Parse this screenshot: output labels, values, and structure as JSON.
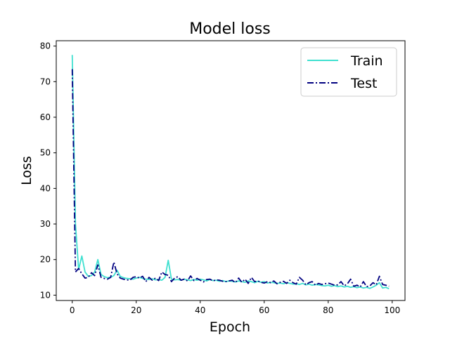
{
  "chart_data": {
    "type": "line",
    "title": "Model loss",
    "xlabel": "Epoch",
    "ylabel": "Loss",
    "xlim": [
      -5,
      104
    ],
    "ylim": [
      8.5,
      81.5
    ],
    "xticks": [
      0,
      20,
      40,
      60,
      80,
      100
    ],
    "yticks": [
      10,
      20,
      30,
      40,
      50,
      60,
      70,
      80
    ],
    "grid": false,
    "legend_position": "top-right",
    "series": [
      {
        "name": "Train",
        "color": "#40e0d0",
        "style": "solid",
        "x": [
          0,
          1,
          2,
          3,
          4,
          5,
          6,
          7,
          8,
          9,
          10,
          11,
          12,
          13,
          14,
          15,
          16,
          17,
          18,
          19,
          20,
          21,
          22,
          23,
          24,
          25,
          26,
          27,
          28,
          29,
          30,
          31,
          32,
          33,
          34,
          35,
          36,
          37,
          38,
          39,
          40,
          41,
          42,
          43,
          44,
          45,
          46,
          47,
          48,
          49,
          50,
          51,
          52,
          53,
          54,
          55,
          56,
          57,
          58,
          59,
          60,
          61,
          62,
          63,
          64,
          65,
          66,
          67,
          68,
          69,
          70,
          71,
          72,
          73,
          74,
          75,
          76,
          77,
          78,
          79,
          80,
          81,
          82,
          83,
          84,
          85,
          86,
          87,
          88,
          89,
          90,
          91,
          92,
          93,
          94,
          95,
          96,
          97,
          98,
          99
        ],
        "values": [
          77.5,
          30.0,
          17.2,
          21.0,
          16.5,
          15.3,
          15.5,
          16.5,
          20.0,
          15.8,
          15.2,
          14.9,
          15.0,
          15.5,
          17.0,
          15.3,
          14.9,
          14.7,
          14.6,
          14.5,
          14.8,
          15.0,
          14.7,
          14.5,
          14.4,
          14.6,
          14.3,
          14.4,
          14.2,
          15.0,
          19.8,
          14.5,
          14.3,
          14.4,
          14.2,
          14.5,
          14.3,
          14.1,
          14.4,
          14.2,
          14.5,
          14.3,
          14.0,
          14.4,
          14.1,
          14.2,
          13.9,
          14.1,
          13.8,
          14.0,
          13.9,
          13.7,
          14.0,
          13.8,
          13.6,
          14.0,
          13.8,
          13.5,
          13.9,
          13.6,
          13.8,
          13.4,
          13.6,
          13.5,
          13.3,
          13.4,
          13.2,
          13.5,
          13.3,
          13.1,
          13.2,
          13.0,
          13.3,
          12.9,
          13.1,
          12.8,
          13.0,
          12.9,
          12.7,
          12.6,
          12.8,
          12.5,
          12.7,
          12.4,
          12.6,
          12.3,
          12.5,
          12.2,
          12.4,
          12.1,
          12.3,
          12.0,
          12.2,
          11.9,
          12.3,
          12.8,
          13.5,
          12.0,
          12.2,
          11.8
        ]
      },
      {
        "name": "Test",
        "color": "#000080",
        "style": "dashdot",
        "x": [
          0,
          1,
          2,
          3,
          4,
          5,
          6,
          7,
          8,
          9,
          10,
          11,
          12,
          13,
          14,
          15,
          16,
          17,
          18,
          19,
          20,
          21,
          22,
          23,
          24,
          25,
          26,
          27,
          28,
          29,
          30,
          31,
          32,
          33,
          34,
          35,
          36,
          37,
          38,
          39,
          40,
          41,
          42,
          43,
          44,
          45,
          46,
          47,
          48,
          49,
          50,
          51,
          52,
          53,
          54,
          55,
          56,
          57,
          58,
          59,
          60,
          61,
          62,
          63,
          64,
          65,
          66,
          67,
          68,
          69,
          70,
          71,
          72,
          73,
          74,
          75,
          76,
          77,
          78,
          79,
          80,
          81,
          82,
          83,
          84,
          85,
          86,
          87,
          88,
          89,
          90,
          91,
          92,
          93,
          94,
          95,
          96,
          97,
          98,
          99
        ],
        "values": [
          73.5,
          16.5,
          17.5,
          16.0,
          14.8,
          15.0,
          16.3,
          15.5,
          18.5,
          15.0,
          14.7,
          14.5,
          15.0,
          19.3,
          16.0,
          14.8,
          14.5,
          14.3,
          14.2,
          15.0,
          15.2,
          14.8,
          15.3,
          13.8,
          15.0,
          14.2,
          14.8,
          14.1,
          16.5,
          15.8,
          15.6,
          13.8,
          14.8,
          15.2,
          14.2,
          14.5,
          14.0,
          15.4,
          14.1,
          14.7,
          14.2,
          13.7,
          14.4,
          14.5,
          14.0,
          14.3,
          14.2,
          13.9,
          13.8,
          14.0,
          14.2,
          13.5,
          14.8,
          13.6,
          14.5,
          13.3,
          15.0,
          13.8,
          14.0,
          13.6,
          13.4,
          13.8,
          13.5,
          14.0,
          13.2,
          13.6,
          13.9,
          13.3,
          14.2,
          13.5,
          13.1,
          15.0,
          14.2,
          12.9,
          13.5,
          13.8,
          12.8,
          13.3,
          13.0,
          13.2,
          13.4,
          13.1,
          12.8,
          12.9,
          13.8,
          12.6,
          13.2,
          14.5,
          12.5,
          12.8,
          12.3,
          13.8,
          12.4,
          12.6,
          13.5,
          12.9,
          15.3,
          13.0,
          12.8,
          12.5
        ]
      }
    ]
  }
}
